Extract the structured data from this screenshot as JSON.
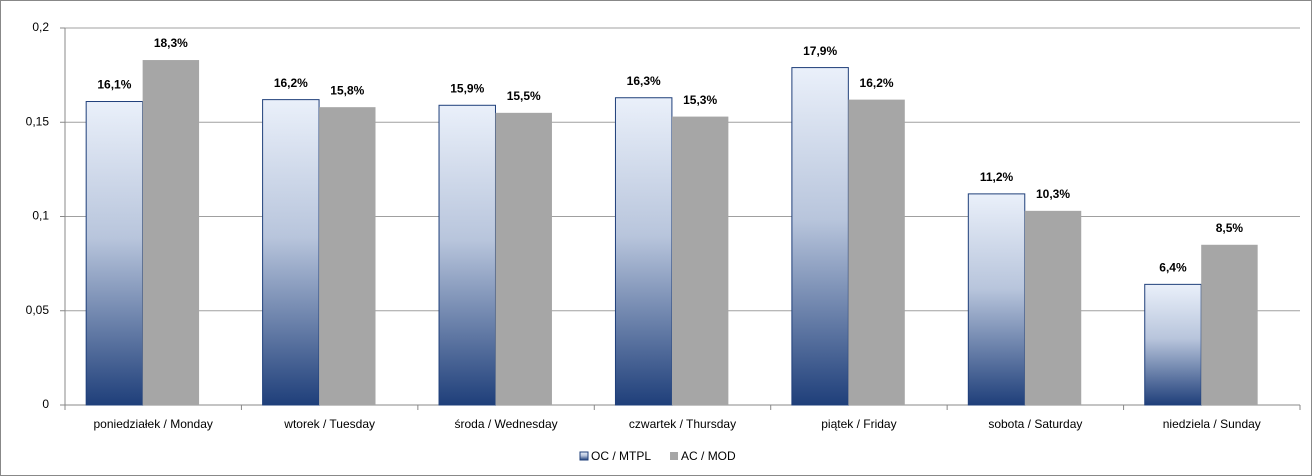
{
  "chart_data": {
    "type": "bar",
    "categories": [
      "poniedziałek / Monday",
      "wtorek / Tuesday",
      "środa / Wednesday",
      "czwartek / Thursday",
      "piątek / Friday",
      "sobota / Saturday",
      "niedziela / Sunday"
    ],
    "series": [
      {
        "name": "OC / MTPL",
        "color": "#1f3f7a",
        "values": [
          0.161,
          0.162,
          0.159,
          0.163,
          0.179,
          0.112,
          0.064
        ],
        "value_labels": [
          "16,1%",
          "16,2%",
          "15,9%",
          "16,3%",
          "17,9%",
          "11,2%",
          "6,4%"
        ]
      },
      {
        "name": "AC / MOD",
        "color": "#a6a6a6",
        "values": [
          0.183,
          0.158,
          0.155,
          0.153,
          0.162,
          0.103,
          0.085
        ],
        "value_labels": [
          "18,3%",
          "15,8%",
          "15,5%",
          "15,3%",
          "16,2%",
          "10,3%",
          "8,5%"
        ]
      }
    ],
    "ylim": [
      0,
      0.2
    ],
    "yticks": [
      0,
      {
        "value": 0.05,
        "label": "0,05"
      },
      {
        "value": 0.1,
        "label": "0,1"
      },
      {
        "value": 0.15,
        "label": "0,15"
      },
      {
        "value": 0.2,
        "label": "0,2"
      }
    ],
    "grid": true,
    "legend": "bottom"
  }
}
